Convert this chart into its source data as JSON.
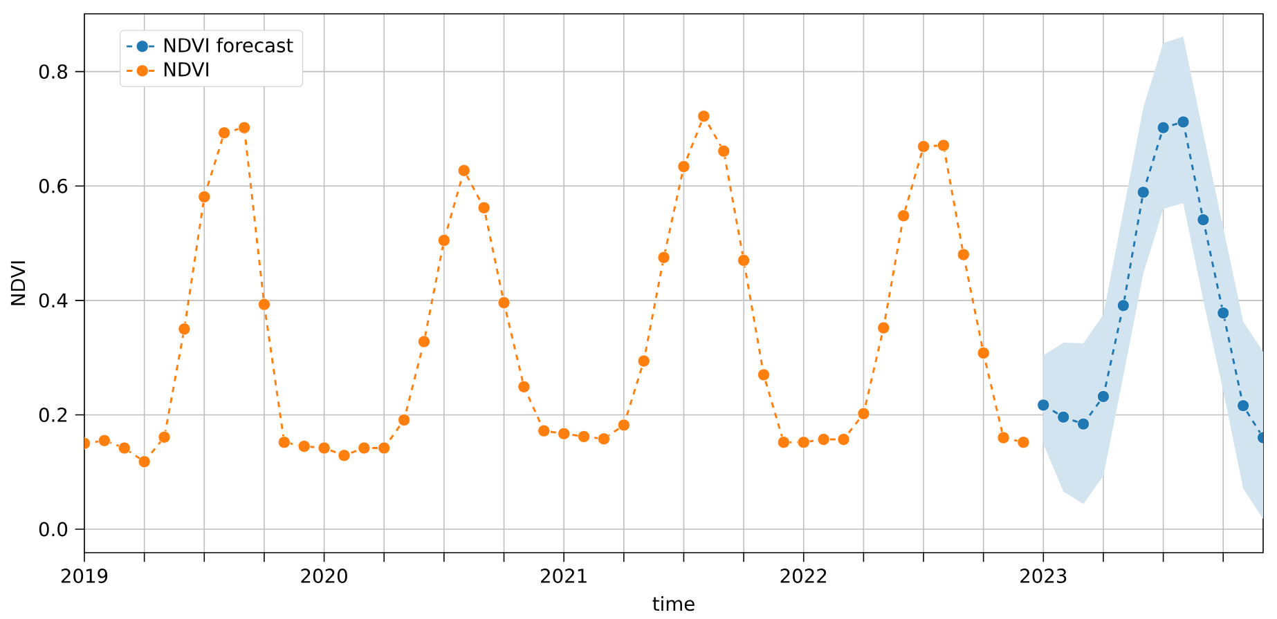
{
  "chart_data": {
    "type": "line",
    "xlabel": "time",
    "ylabel": "NDVI",
    "xlim": [
      "2019-01",
      "2023-12"
    ],
    "ylim": [
      -0.041,
      0.901
    ],
    "xticks": [
      {
        "value": "2019-01",
        "label": "2019"
      },
      {
        "value": "2019-04",
        "label": null
      },
      {
        "value": "2019-07",
        "label": null
      },
      {
        "value": "2019-10",
        "label": null
      },
      {
        "value": "2020-01",
        "label": "2020"
      },
      {
        "value": "2020-04",
        "label": null
      },
      {
        "value": "2020-07",
        "label": null
      },
      {
        "value": "2020-10",
        "label": null
      },
      {
        "value": "2021-01",
        "label": "2021"
      },
      {
        "value": "2021-04",
        "label": null
      },
      {
        "value": "2021-07",
        "label": null
      },
      {
        "value": "2021-10",
        "label": null
      },
      {
        "value": "2022-01",
        "label": "2022"
      },
      {
        "value": "2022-04",
        "label": null
      },
      {
        "value": "2022-07",
        "label": null
      },
      {
        "value": "2022-10",
        "label": null
      },
      {
        "value": "2023-01",
        "label": "2023"
      },
      {
        "value": "2023-04",
        "label": null
      },
      {
        "value": "2023-07",
        "label": null
      },
      {
        "value": "2023-10",
        "label": null
      }
    ],
    "yticks": [
      {
        "value": 0.0,
        "label": "0.0"
      },
      {
        "value": 0.2,
        "label": "0.2"
      },
      {
        "value": 0.4,
        "label": "0.4"
      },
      {
        "value": 0.6,
        "label": "0.6"
      },
      {
        "value": 0.8,
        "label": "0.8"
      }
    ],
    "grid": true,
    "legend": "top left",
    "marker": "circle",
    "line_style": "dashed",
    "series": [
      {
        "name": "NDVI forecast",
        "color": "#1f77b4",
        "x": [
          "2023-01",
          "2023-02",
          "2023-03",
          "2023-04",
          "2023-05",
          "2023-06",
          "2023-07",
          "2023-08",
          "2023-09",
          "2023-10",
          "2023-11",
          "2023-12"
        ],
        "values": [
          0.217,
          0.196,
          0.184,
          0.232,
          0.391,
          0.589,
          0.702,
          0.712,
          0.541,
          0.378,
          0.216,
          0.16
        ],
        "lower": [
          0.149,
          0.066,
          0.044,
          0.093,
          0.268,
          0.447,
          0.56,
          0.57,
          0.401,
          0.242,
          0.071,
          0.018
        ],
        "upper": [
          0.304,
          0.326,
          0.325,
          0.375,
          0.556,
          0.737,
          0.85,
          0.861,
          0.692,
          0.527,
          0.363,
          0.31
        ]
      },
      {
        "name": "NDVI",
        "color": "#ff7f0e",
        "x": [
          "2019-01",
          "2019-02",
          "2019-03",
          "2019-04",
          "2019-05",
          "2019-06",
          "2019-07",
          "2019-08",
          "2019-09",
          "2019-10",
          "2019-11",
          "2019-12",
          "2020-01",
          "2020-02",
          "2020-03",
          "2020-04",
          "2020-05",
          "2020-06",
          "2020-07",
          "2020-08",
          "2020-09",
          "2020-10",
          "2020-11",
          "2020-12",
          "2021-01",
          "2021-02",
          "2021-03",
          "2021-04",
          "2021-05",
          "2021-06",
          "2021-07",
          "2021-08",
          "2021-09",
          "2021-10",
          "2021-11",
          "2021-12",
          "2022-01",
          "2022-02",
          "2022-03",
          "2022-04",
          "2022-05",
          "2022-06",
          "2022-07",
          "2022-08",
          "2022-09",
          "2022-10",
          "2022-11",
          "2022-12"
        ],
        "values": [
          0.15,
          0.155,
          0.142,
          0.118,
          0.161,
          0.35,
          0.581,
          0.693,
          0.702,
          0.393,
          0.152,
          0.145,
          0.142,
          0.129,
          0.142,
          0.142,
          0.191,
          0.328,
          0.505,
          0.627,
          0.562,
          0.396,
          0.249,
          0.172,
          0.167,
          0.162,
          0.158,
          0.182,
          0.294,
          0.475,
          0.634,
          0.722,
          0.661,
          0.47,
          0.27,
          0.152,
          0.152,
          0.157,
          0.157,
          0.202,
          0.352,
          0.548,
          0.669,
          0.671,
          0.48,
          0.308,
          0.16,
          0.152
        ]
      }
    ]
  }
}
